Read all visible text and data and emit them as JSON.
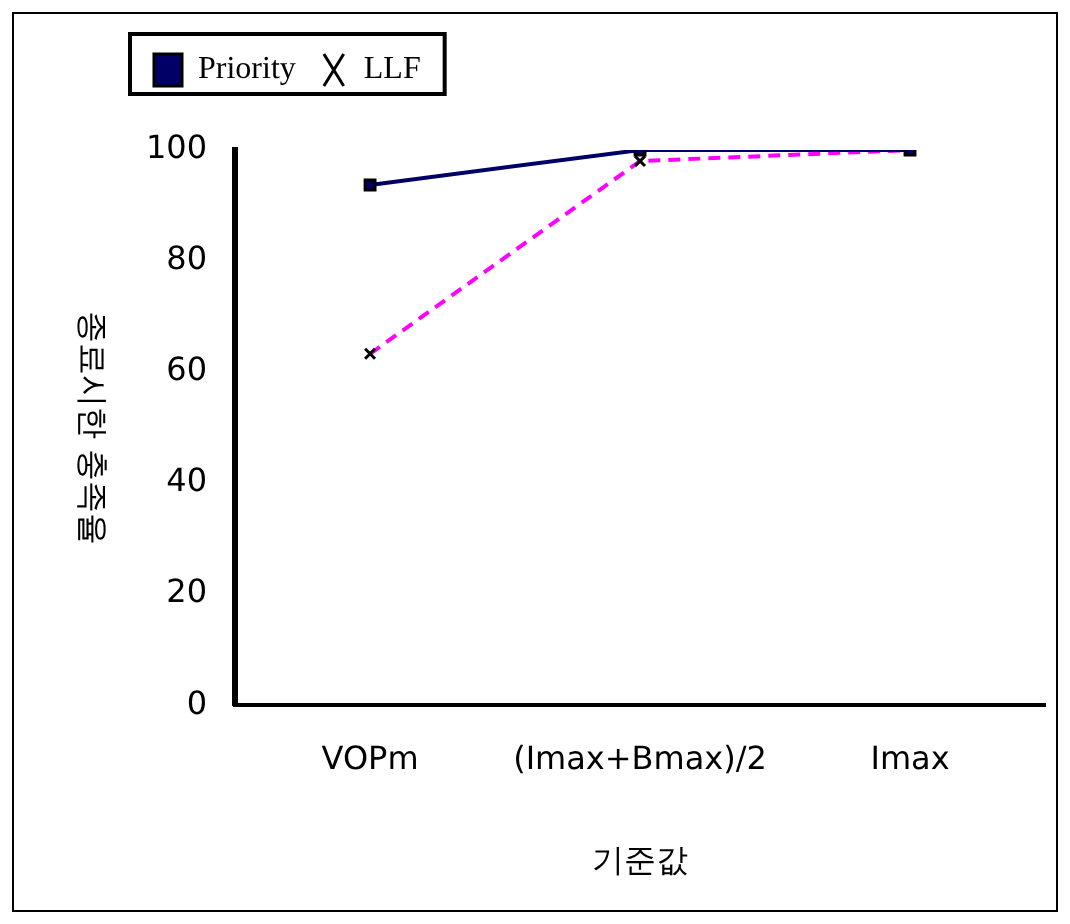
{
  "chart_data": {
    "type": "line",
    "xlabel": "기준값",
    "ylabel": "종료시한 충족율",
    "categories": [
      "VOPm",
      "(Imax+Bmax)/2",
      "Imax"
    ],
    "series": [
      {
        "name": "Priority",
        "color": "#000066",
        "values": [
          93.7,
          100,
          100
        ],
        "marker": "square",
        "line_style": "solid"
      },
      {
        "name": "LLF",
        "color": "#ff00ff",
        "values": [
          63.3,
          98,
          100
        ],
        "marker": "cross",
        "line_style": "dashed"
      }
    ],
    "ylim": [
      0,
      100
    ],
    "yticks": [
      0,
      20,
      40,
      60,
      80,
      100
    ],
    "grid": false,
    "legend": "top"
  }
}
